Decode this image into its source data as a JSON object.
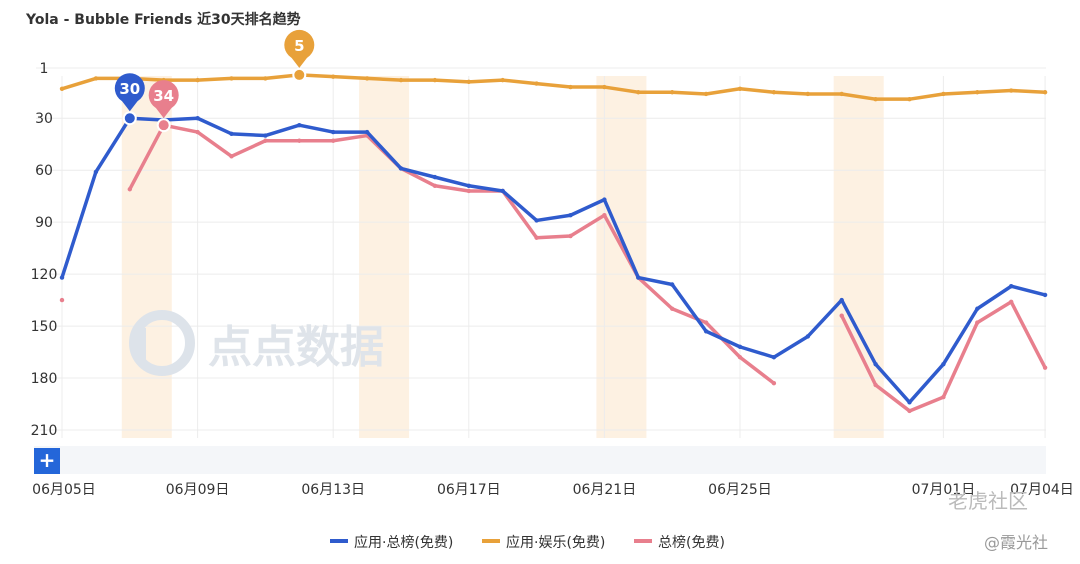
{
  "chart_data": {
    "type": "line",
    "title": "Yola - Bubble Friends 近30天排名趋势",
    "y_inverted": true,
    "ylim": [
      1,
      210
    ],
    "y_ticks": [
      1,
      30,
      60,
      90,
      120,
      150,
      180,
      210
    ],
    "x": [
      "06月05日",
      "06月06日",
      "06月07日",
      "06月08日",
      "06月09日",
      "06月10日",
      "06月11日",
      "06月12日",
      "06月13日",
      "06月14日",
      "06月15日",
      "06月16日",
      "06月17日",
      "06月18日",
      "06月19日",
      "06月20日",
      "06月21日",
      "06月22日",
      "06月23日",
      "06月24日",
      "06月25日",
      "06月26日",
      "06月27日",
      "06月28日",
      "06月29日",
      "06月30日",
      "07月01日",
      "07月02日",
      "07月03日",
      "07月04日"
    ],
    "x_tick_labels": [
      "06月05日",
      "06月09日",
      "06月13日",
      "06月17日",
      "06月21日",
      "06月25日",
      "07月01日",
      "07月04日"
    ],
    "highlight_days": [
      "06月07日",
      "06月14日",
      "06月21日",
      "06月28日"
    ],
    "series": [
      {
        "name": "应用·总榜(免费)",
        "color": "#2f5bcd",
        "values": [
          122,
          61,
          30,
          31,
          30,
          39,
          40,
          34,
          38,
          38,
          59,
          64,
          69,
          72,
          89,
          86,
          77,
          122,
          126,
          153,
          162,
          168,
          156,
          135,
          172,
          194,
          172,
          140,
          127,
          132
        ]
      },
      {
        "name": "应用·娱乐(免费)",
        "color": "#e8a13a",
        "values": [
          13,
          7,
          7,
          8,
          8,
          7,
          7,
          5,
          6,
          7,
          8,
          8,
          9,
          8,
          10,
          12,
          12,
          15,
          15,
          16,
          13,
          15,
          16,
          16,
          19,
          19,
          16,
          15,
          14,
          15
        ]
      },
      {
        "name": "总榜(免费)",
        "color": "#e87f8d",
        "values": [
          135,
          null,
          71,
          34,
          38,
          52,
          43,
          43,
          43,
          40,
          59,
          69,
          72,
          72,
          99,
          98,
          86,
          122,
          140,
          148,
          168,
          183,
          null,
          144,
          184,
          199,
          191,
          148,
          136,
          174
        ]
      }
    ],
    "annotations": [
      {
        "series": "应用·总榜(免费)",
        "x": "06月07日",
        "label": "30",
        "color": "#2f5bcd"
      },
      {
        "series": "总榜(免费)",
        "x": "06月08日",
        "label": "34",
        "color": "#e87f8d"
      },
      {
        "series": "应用·娱乐(免费)",
        "x": "06月12日",
        "label": "5",
        "color": "#e8a13a"
      }
    ],
    "grid": true,
    "legend_position": "bottom"
  },
  "controls": {
    "add_label": "+"
  },
  "watermarks": {
    "brand": "点点数据",
    "community": "老虎社区",
    "author": "@霞光社"
  }
}
